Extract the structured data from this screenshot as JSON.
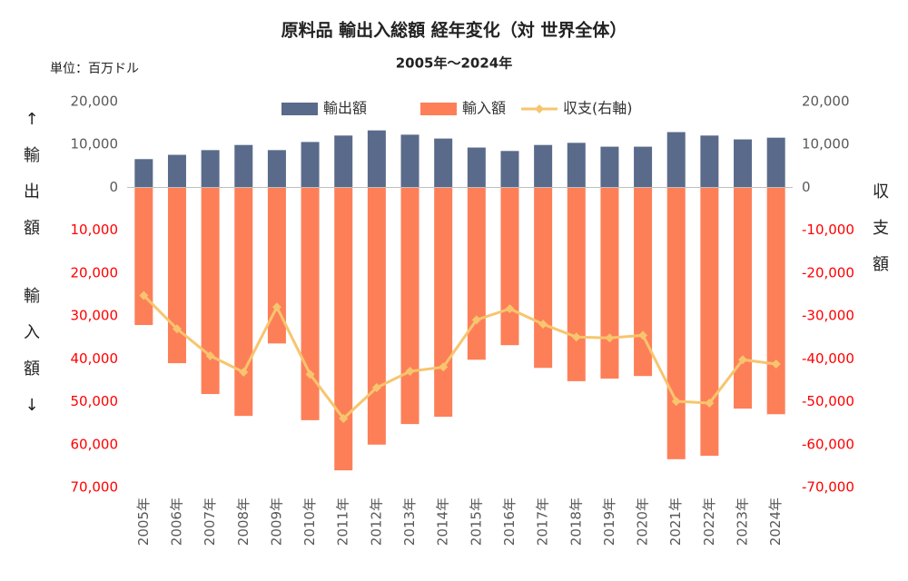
{
  "chart_data": {
    "type": "bar_line",
    "title": "原料品 輸出入総額 経年変化（対 世界全体）",
    "subtitle": "2005年～2024年",
    "unit_label": "単位：百万ドル",
    "y_label_top": "↑輸出額",
    "y_label_bottom": "輸入額↓",
    "y2_label": "収支額",
    "categories": [
      "2005年",
      "2006年",
      "2007年",
      "2008年",
      "2009年",
      "2010年",
      "2011年",
      "2012年",
      "2013年",
      "2014年",
      "2015年",
      "2016年",
      "2017年",
      "2018年",
      "2019年",
      "2020年",
      "2021年",
      "2022年",
      "2023年",
      "2024年"
    ],
    "series": [
      {
        "name": "輸出額",
        "color": "#5a6a8a",
        "values": [
          6600,
          7600,
          8700,
          9900,
          8700,
          10600,
          12100,
          13300,
          12300,
          11400,
          9300,
          8500,
          9900,
          10400,
          9500,
          9500,
          12900,
          12100,
          11200,
          11600
        ]
      },
      {
        "name": "輸入額",
        "color": "#fd7f58",
        "values": [
          -32100,
          -41000,
          -48200,
          -53300,
          -36400,
          -54300,
          -66000,
          -60000,
          -55200,
          -53500,
          -40200,
          -36800,
          -42100,
          -45200,
          -44600,
          -44000,
          -63400,
          -62600,
          -51600,
          -52900
        ]
      },
      {
        "name": "収支(右軸)",
        "color": "#f7c56e",
        "axis": "y2",
        "values": [
          -25200,
          -33000,
          -39300,
          -43100,
          -27900,
          -43600,
          -53900,
          -46700,
          -42900,
          -41900,
          -30900,
          -28300,
          -31900,
          -34900,
          -35100,
          -34500,
          -49900,
          -50300,
          -40200,
          -41200
        ]
      }
    ],
    "ylim": [
      -70000,
      20000
    ],
    "yticks": [
      {
        "value": 20000,
        "label": "20,000"
      },
      {
        "value": 10000,
        "label": "10,000"
      },
      0,
      {
        "value": -10000,
        "label": "10,000"
      },
      {
        "value": -20000,
        "label": "20,000"
      },
      {
        "value": -30000,
        "label": "30,000"
      },
      {
        "value": -40000,
        "label": "40,000"
      },
      {
        "value": -50000,
        "label": "50,000"
      },
      {
        "value": -60000,
        "label": "60,000"
      },
      {
        "value": -70000,
        "label": "70,000"
      }
    ],
    "y2lim": [
      -70000,
      20000
    ],
    "y2ticks": [
      {
        "value": 20000,
        "label": "20,000"
      },
      {
        "value": 10000,
        "label": "10,000"
      },
      0,
      {
        "value": -10000,
        "label": "-10,000"
      },
      {
        "value": -20000,
        "label": "-20,000"
      },
      {
        "value": -30000,
        "label": "-30,000"
      },
      {
        "value": -40000,
        "label": "-40,000"
      },
      {
        "value": -50000,
        "label": "-50,000"
      },
      {
        "value": -60000,
        "label": "-60,000"
      },
      {
        "value": -70000,
        "label": "-70,000"
      }
    ],
    "legend": "top",
    "negative_tick_color": "#ff0000"
  }
}
